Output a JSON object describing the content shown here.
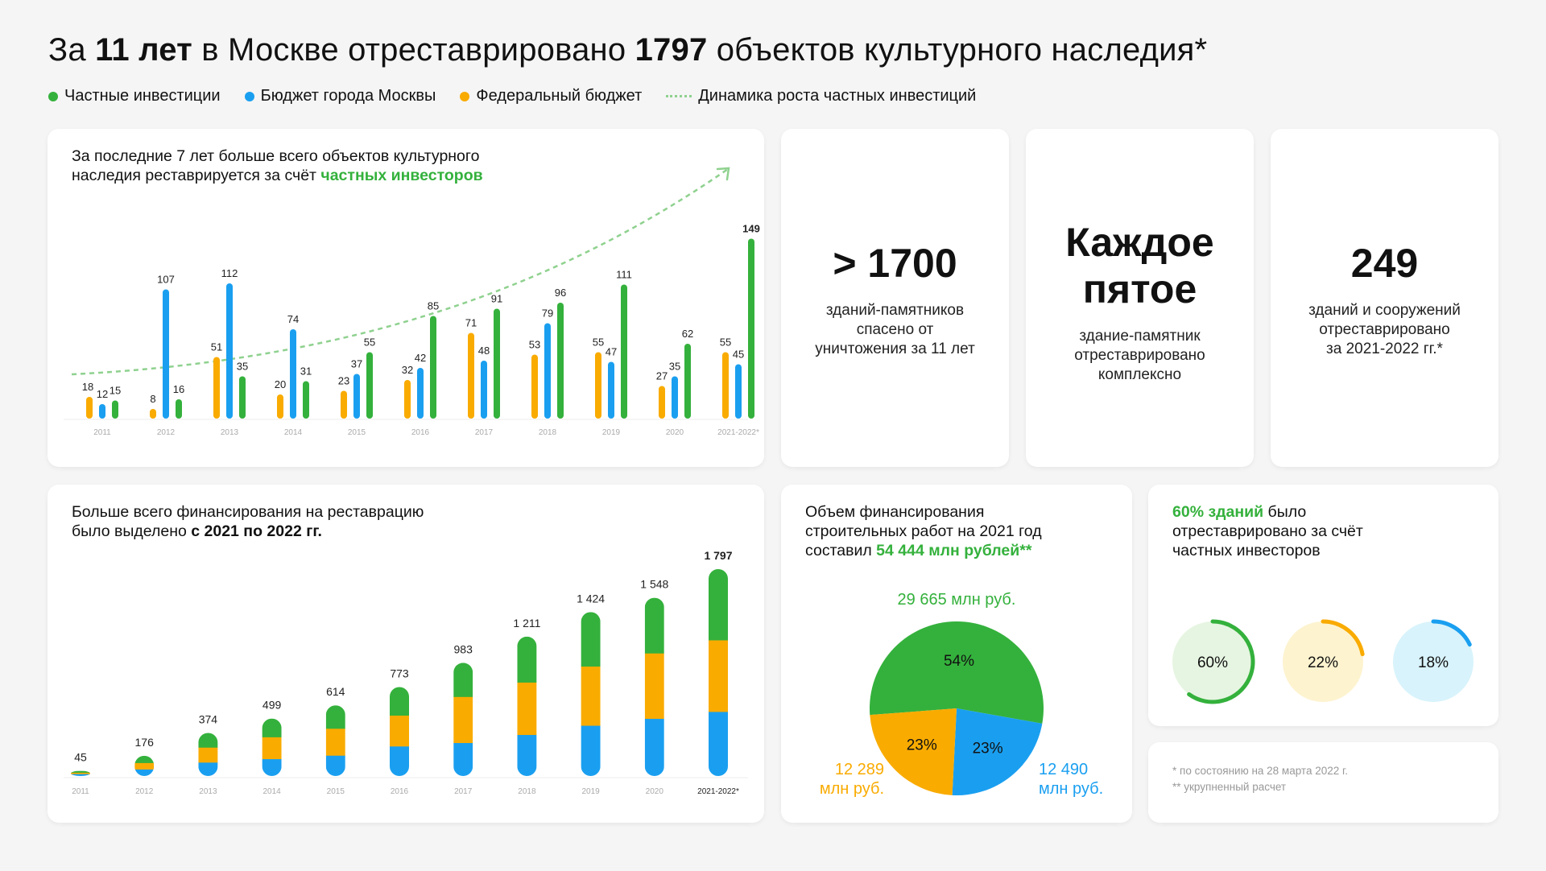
{
  "title": {
    "prefix": "За ",
    "bold1": "11 лет",
    "middle": " в Москве отреставрировано ",
    "bold2": "1797",
    "suffix": " объектов культурного наследия*"
  },
  "legend": [
    {
      "label": "Частные инвестиции",
      "color": "#34b13c",
      "type": "dot"
    },
    {
      "label": "Бюджет города Москвы",
      "color": "#1a9ff0",
      "type": "dot"
    },
    {
      "label": "Федеральный бюджет",
      "color": "#f9ab00",
      "type": "dot"
    },
    {
      "label": "Динамика роста частных инвестиций",
      "color": "#8fd18f",
      "type": "dash"
    }
  ],
  "colors": {
    "private": "#34b13c",
    "city": "#1a9ff0",
    "federal": "#f9ab00",
    "trend": "#8fd18f"
  },
  "card1": {
    "head_line1": "За последние 7 лет больше всего объектов культурного",
    "head_line2_prefix": "наследия реставрируется за счёт ",
    "head_line2_green": "частных инвесторов"
  },
  "card2": {
    "head_line1": "Больше всего финансирования на реставрацию",
    "head_line2_prefix": "было выделено ",
    "head_line2_bold": "с 2021 по 2022 гг."
  },
  "stats": [
    {
      "big": "> 1700",
      "desc": [
        "зданий-памятников",
        "спасено от",
        "уничтожения за 11 лет"
      ]
    },
    {
      "big": [
        "Каждое",
        "пятое"
      ],
      "desc": [
        "здание-памятник",
        "отреставрировано",
        "комплексно"
      ]
    },
    {
      "big": "249",
      "desc": [
        "зданий и сооружений",
        "отреставрировано",
        "за 2021-2022 гг.*"
      ]
    }
  ],
  "card_pie": {
    "head_line1": "Объем финансирования",
    "head_line2": "строительных работ на 2021 год",
    "head_line3_prefix": "составил ",
    "head_line3_green": "54 444 млн рублей**",
    "label_private": "29 665 млн руб.",
    "label_federal_1": "12 289",
    "label_federal_2": "млн руб.",
    "label_city_1": "12 490",
    "label_city_2": "млн руб."
  },
  "card_rings": {
    "head_green": "60% зданий",
    "head_line1_rest": " было",
    "head_line2": "отреставрировано за счёт",
    "head_line3": "частных инвесторов"
  },
  "notes": [
    "* по состоянию на 28 марта 2022 г.",
    "** укрупненный расчет"
  ],
  "chart_data": [
    {
      "type": "bar",
      "categories": [
        "2011",
        "2012",
        "2013",
        "2014",
        "2015",
        "2016",
        "2017",
        "2018",
        "2019",
        "2020",
        "2021-2022*"
      ],
      "series": [
        {
          "name": "Федеральный бюджет",
          "values": [
            18,
            8,
            51,
            20,
            23,
            32,
            71,
            53,
            55,
            27,
            55
          ]
        },
        {
          "name": "Бюджет города Москвы",
          "values": [
            12,
            107,
            112,
            74,
            37,
            42,
            48,
            79,
            47,
            35,
            45
          ]
        },
        {
          "name": "Частные инвестиции",
          "values": [
            15,
            16,
            35,
            31,
            55,
            85,
            91,
            96,
            111,
            62,
            149
          ]
        }
      ],
      "ylim": [
        0,
        160
      ]
    },
    {
      "type": "bar",
      "stacked": true,
      "categories": [
        "2011",
        "2012",
        "2013",
        "2014",
        "2015",
        "2016",
        "2017",
        "2018",
        "2019",
        "2020",
        "2021-2022*"
      ],
      "totals": [
        "45",
        "176",
        "374",
        "499",
        "614",
        "773",
        "983",
        "1 211",
        "1 424",
        "1 548",
        "1 797"
      ],
      "series": [
        {
          "name": "Бюджет города Москвы",
          "values": [
            20,
            60,
            120,
            150,
            180,
            260,
            290,
            360,
            440,
            500,
            560
          ]
        },
        {
          "name": "Федеральный бюджет",
          "values": [
            12,
            56,
            130,
            190,
            234,
            268,
            400,
            455,
            514,
            568,
            622
          ]
        },
        {
          "name": "Частные инвестиции",
          "values": [
            13,
            60,
            124,
            159,
            200,
            245,
            293,
            396,
            470,
            480,
            615
          ]
        }
      ],
      "ymax": 1797
    },
    {
      "type": "pie",
      "slices": [
        {
          "name": "Частные инвестиции",
          "value": 54,
          "label": "54%"
        },
        {
          "name": "Бюджет города Москвы",
          "value": 23,
          "label": "23%"
        },
        {
          "name": "Федеральный бюджет",
          "value": 23,
          "label": "23%"
        }
      ]
    },
    {
      "type": "pie",
      "subtype": "rings",
      "rings": [
        {
          "name": "Частные инвестиции",
          "value": 60,
          "label": "60%"
        },
        {
          "name": "Федеральный бюджет",
          "value": 22,
          "label": "22%"
        },
        {
          "name": "Бюджет города Москвы",
          "value": 18,
          "label": "18%"
        }
      ]
    }
  ]
}
